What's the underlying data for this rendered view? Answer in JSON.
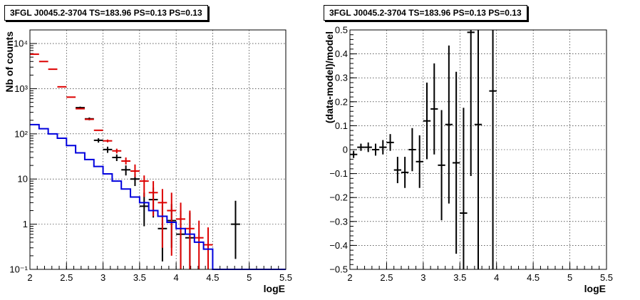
{
  "chart_data": [
    {
      "type": "line",
      "title": "3FGL J0045.2-3704 TS=183.96 PS=0.13 PS=0.13",
      "xlabel": "logE",
      "ylabel": "Nb of counts",
      "xlim": [
        2,
        5.5
      ],
      "ylim": [
        0.1,
        20000
      ],
      "yscale": "log",
      "grid": true,
      "xticks": [
        {
          "v": 2,
          "label": "2"
        },
        {
          "v": 2.5,
          "label": "2.5"
        },
        {
          "v": 3,
          "label": "3"
        },
        {
          "v": 3.5,
          "label": "3.5"
        },
        {
          "v": 4,
          "label": "4"
        },
        {
          "v": 4.5,
          "label": "4.5"
        },
        {
          "v": 5,
          "label": "5"
        },
        {
          "v": 5.5,
          "label": "5.5"
        }
      ],
      "yticks": [
        {
          "v": 0.1,
          "label": "10⁻¹"
        },
        {
          "v": 1,
          "label": "1"
        },
        {
          "v": 10,
          "label": "10"
        },
        {
          "v": 100,
          "label": "10²"
        },
        {
          "v": 1000,
          "label": "10³"
        },
        {
          "v": 10000,
          "label": "10⁴"
        }
      ],
      "bin_width": 0.125,
      "series": [
        {
          "color": "#000000",
          "style": "errorbars",
          "x": [
            2.0625,
            2.1875,
            2.3125,
            2.4375,
            2.5625,
            2.6875,
            2.8125,
            2.9375,
            3.0625,
            3.1875,
            3.3125,
            3.4375,
            3.5625,
            3.6875,
            3.8125,
            3.9375,
            4.0625,
            4.1875,
            4.3125,
            4.4375,
            4.5625,
            4.6875,
            4.8125,
            4.9375
          ],
          "y": [
            null,
            null,
            null,
            null,
            null,
            380,
            215,
            72,
            45,
            30,
            16,
            10,
            2.5,
            3.5,
            0.8,
            1.2,
            0.6,
            0.5,
            null,
            null,
            null,
            null,
            1,
            null
          ],
          "err_lo": [
            null,
            null,
            null,
            null,
            null,
            20,
            15,
            8,
            7,
            5,
            4,
            3,
            1.6,
            2.1,
            0.65,
            0.9,
            0.5,
            0.42,
            null,
            null,
            null,
            null,
            0.83,
            null
          ],
          "err_hi": [
            null,
            null,
            null,
            null,
            null,
            20,
            15,
            8,
            7,
            5,
            4,
            3,
            2.5,
            3.0,
            1.8,
            1.6,
            1.4,
            1.3,
            null,
            null,
            null,
            null,
            2.3,
            null
          ]
        },
        {
          "color": "#dd0000",
          "style": "errorbars",
          "x": [
            2.0625,
            2.1875,
            2.3125,
            2.4375,
            2.5625,
            2.6875,
            2.8125,
            2.9375,
            3.0625,
            3.1875,
            3.3125,
            3.4375,
            3.5625,
            3.6875,
            3.8125,
            3.9375,
            4.0625,
            4.1875,
            4.3125,
            4.4375
          ],
          "y": [
            5800,
            4000,
            2700,
            1100,
            650,
            360,
            210,
            120,
            70,
            42,
            25,
            15,
            9,
            5,
            3,
            2,
            1.3,
            0.8,
            0.5,
            0.35
          ],
          "err_lo": [
            0,
            0,
            0,
            0,
            0,
            0,
            0,
            0,
            5,
            5,
            4,
            4,
            5,
            3.5,
            2.7,
            1.8,
            1.2,
            0.75,
            0.47,
            0.33
          ],
          "err_hi": [
            0,
            0,
            0,
            0,
            0,
            0,
            0,
            0,
            5,
            5,
            5,
            6,
            3,
            4,
            3,
            3,
            1.7,
            1.2,
            0.7,
            0.5
          ]
        },
        {
          "color": "#0000dd",
          "style": "step",
          "edges": [
            2.0,
            2.125,
            2.25,
            2.375,
            2.5,
            2.625,
            2.75,
            2.875,
            3.0,
            3.125,
            3.25,
            3.375,
            3.5,
            3.625,
            3.75,
            3.875,
            4.0,
            4.125,
            4.25,
            4.375,
            4.5,
            4.625,
            4.75,
            4.875,
            5.0,
            5.125,
            5.25,
            5.375,
            5.5
          ],
          "values": [
            160,
            130,
            100,
            80,
            55,
            38,
            27,
            19,
            13,
            9,
            6,
            4,
            3,
            2,
            1.5,
            1.1,
            0.8,
            0.6,
            0.4,
            0.28,
            0.1,
            0.1,
            0.1,
            0.1,
            0.1,
            0.1,
            0.1,
            0.1
          ]
        }
      ]
    },
    {
      "type": "scatter",
      "title": "3FGL J0045.2-3704 TS=183.96 PS=0.13 PS=0.13",
      "xlabel": "logE",
      "ylabel": "(data-model)/model",
      "xlim": [
        2,
        5.5
      ],
      "ylim": [
        -0.5,
        0.5
      ],
      "grid": true,
      "xticks": [
        {
          "v": 2,
          "label": "2"
        },
        {
          "v": 2.5,
          "label": "2.5"
        },
        {
          "v": 3,
          "label": "3"
        },
        {
          "v": 3.5,
          "label": "3.5"
        },
        {
          "v": 4,
          "label": "4"
        },
        {
          "v": 4.5,
          "label": "4.5"
        },
        {
          "v": 5,
          "label": "5"
        },
        {
          "v": 5.5,
          "label": "5.5"
        }
      ],
      "yticks": [
        {
          "v": -0.5,
          "label": "−0.5"
        },
        {
          "v": -0.4,
          "label": "−0.4"
        },
        {
          "v": -0.3,
          "label": "−0.3"
        },
        {
          "v": -0.2,
          "label": "−0.2"
        },
        {
          "v": -0.1,
          "label": "−0.1"
        },
        {
          "v": 0,
          "label": "0"
        },
        {
          "v": 0.1,
          "label": "0.1"
        },
        {
          "v": 0.2,
          "label": "0.2"
        },
        {
          "v": 0.3,
          "label": "0.3"
        },
        {
          "v": 0.4,
          "label": "0.4"
        },
        {
          "v": 0.5,
          "label": "0.5"
        }
      ],
      "bin_width": 0.1,
      "series": [
        {
          "color": "#000000",
          "style": "errorbars",
          "x": [
            2.05,
            2.15,
            2.25,
            2.35,
            2.45,
            2.55,
            2.65,
            2.75,
            2.85,
            2.95,
            3.05,
            3.15,
            3.25,
            3.35,
            3.45,
            3.55,
            3.65,
            3.75,
            3.95
          ],
          "y": [
            -0.02,
            0.01,
            0.01,
            0.0,
            0.01,
            0.03,
            -0.085,
            -0.095,
            0.0,
            -0.05,
            0.12,
            0.17,
            -0.065,
            0.105,
            -0.055,
            -0.265,
            0.49,
            0.105,
            0.245
          ],
          "err": [
            0.015,
            0.015,
            0.02,
            0.025,
            0.03,
            0.035,
            0.055,
            0.065,
            0.09,
            0.11,
            0.16,
            0.19,
            0.23,
            0.33,
            0.38,
            0.44,
            0.6,
            0.62,
            0.75
          ]
        }
      ]
    }
  ]
}
